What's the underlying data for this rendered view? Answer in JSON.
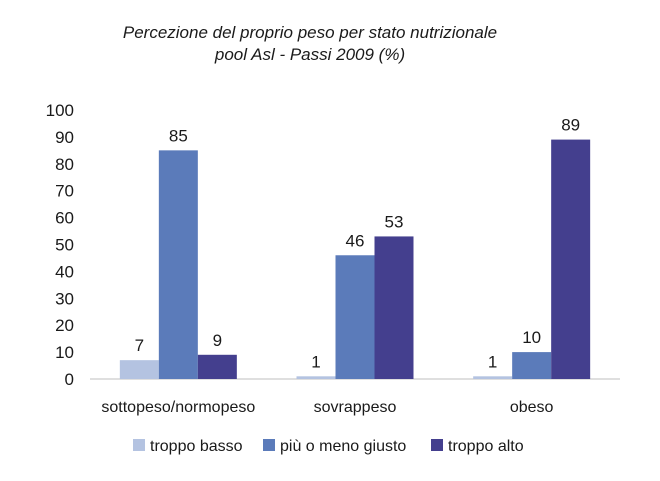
{
  "chart_data": {
    "type": "bar",
    "title": "Percezione del proprio peso per stato nutrizionale",
    "subtitle": "pool Asl - Passi 2009 (%)",
    "categories": [
      "sottopeso/normopeso",
      "sovrappeso",
      "obeso"
    ],
    "series": [
      {
        "name": "troppo basso",
        "values": [
          7,
          1,
          1
        ],
        "color": "#b4c3e1"
      },
      {
        "name": "più o meno giusto",
        "values": [
          85,
          46,
          10
        ],
        "color": "#5b7bba"
      },
      {
        "name": "troppo alto",
        "values": [
          9,
          53,
          89
        ],
        "color": "#443f8e"
      }
    ],
    "ylim": [
      0,
      100
    ],
    "yticks": [
      0,
      10,
      20,
      30,
      40,
      50,
      60,
      70,
      80,
      90,
      100
    ],
    "legend_position": "bottom",
    "grid": false
  }
}
